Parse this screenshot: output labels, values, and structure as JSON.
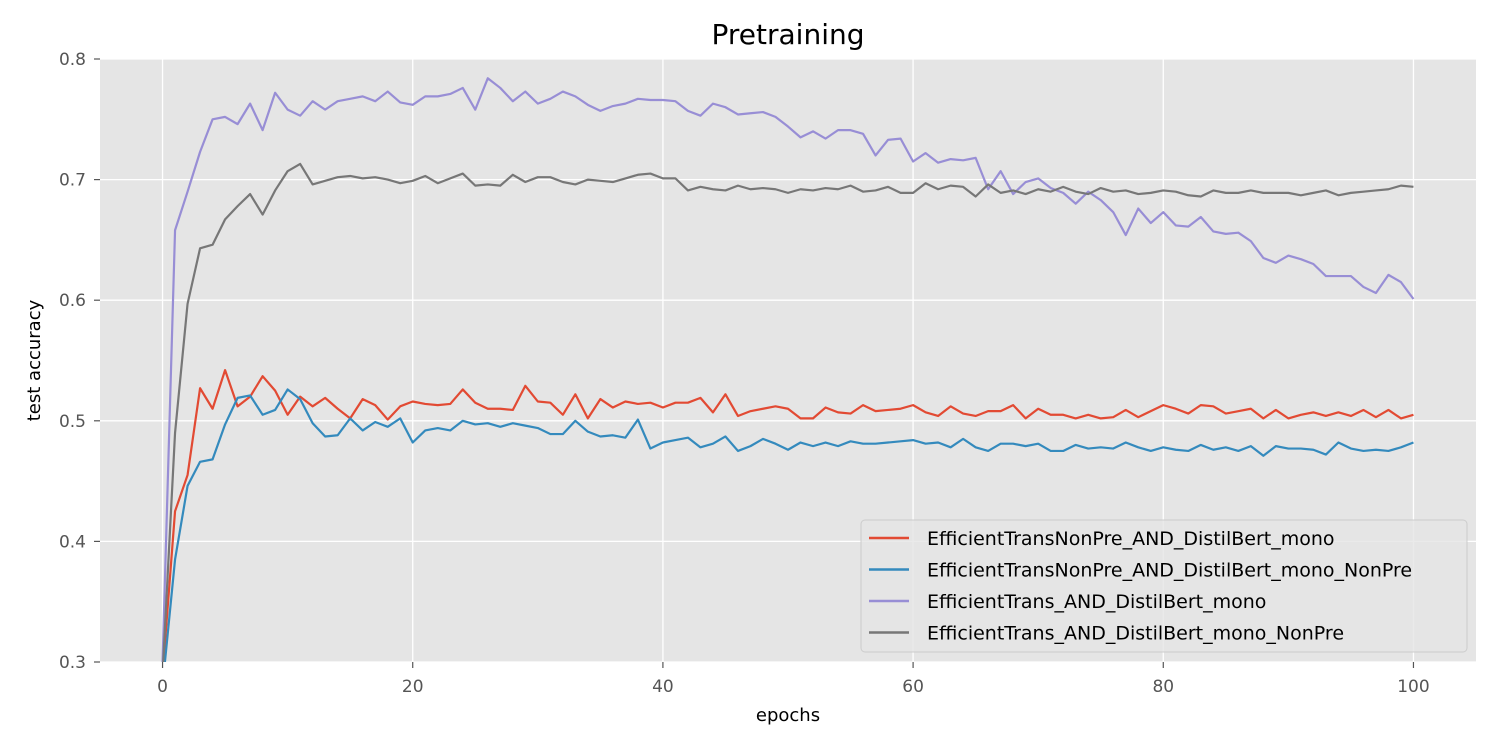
{
  "chart_data": {
    "type": "line",
    "title": "Pretraining",
    "xlabel": "epochs",
    "ylabel": "test accuracy",
    "xlim": [
      -5,
      105
    ],
    "ylim": [
      0.3,
      0.8
    ],
    "xticks": [
      0,
      20,
      40,
      60,
      80,
      100
    ],
    "yticks": [
      0.3,
      0.4,
      0.5,
      0.6,
      0.7,
      0.8
    ],
    "grid": true,
    "legend_position": "bottom-right",
    "x": [
      0,
      1,
      2,
      3,
      4,
      5,
      6,
      7,
      8,
      9,
      10,
      11,
      12,
      13,
      14,
      15,
      16,
      17,
      18,
      19,
      20,
      21,
      22,
      23,
      24,
      25,
      26,
      27,
      28,
      29,
      30,
      31,
      32,
      33,
      34,
      35,
      36,
      37,
      38,
      39,
      40,
      41,
      42,
      43,
      44,
      45,
      46,
      47,
      48,
      49,
      50,
      51,
      52,
      53,
      54,
      55,
      56,
      57,
      58,
      59,
      60,
      61,
      62,
      63,
      64,
      65,
      66,
      67,
      68,
      69,
      70,
      71,
      72,
      73,
      74,
      75,
      76,
      77,
      78,
      79,
      80,
      81,
      82,
      83,
      84,
      85,
      86,
      87,
      88,
      89,
      90,
      91,
      92,
      93,
      94,
      95,
      96,
      97,
      98,
      99,
      100
    ],
    "series": [
      {
        "name": "EfficientTransNonPre_AND_DistilBert_mono",
        "color": "#e24a33",
        "values": [
          0.29,
          0.425,
          0.455,
          0.527,
          0.51,
          0.542,
          0.512,
          0.52,
          0.537,
          0.525,
          0.505,
          0.52,
          0.512,
          0.519,
          0.51,
          0.502,
          0.518,
          0.513,
          0.501,
          0.512,
          0.516,
          0.514,
          0.513,
          0.514,
          0.526,
          0.515,
          0.51,
          0.51,
          0.509,
          0.529,
          0.516,
          0.515,
          0.505,
          0.522,
          0.502,
          0.518,
          0.511,
          0.516,
          0.514,
          0.515,
          0.511,
          0.515,
          0.515,
          0.519,
          0.507,
          0.522,
          0.504,
          0.508,
          0.51,
          0.512,
          0.51,
          0.502,
          0.502,
          0.511,
          0.507,
          0.506,
          0.513,
          0.508,
          0.509,
          0.51,
          0.513,
          0.507,
          0.504,
          0.512,
          0.506,
          0.504,
          0.508,
          0.508,
          0.513,
          0.502,
          0.51,
          0.505,
          0.505,
          0.502,
          0.505,
          0.502,
          0.503,
          0.509,
          0.503,
          0.508,
          0.513,
          0.51,
          0.506,
          0.513,
          0.512,
          0.506,
          0.508,
          0.51,
          0.502,
          0.509,
          0.502,
          0.505,
          0.507,
          0.504,
          0.507,
          0.504,
          0.509,
          0.503,
          0.509,
          0.502,
          0.505
        ]
      },
      {
        "name": "EfficientTransNonPre_AND_DistilBert_mono_NonPre",
        "color": "#348abd",
        "values": [
          0.28,
          0.385,
          0.446,
          0.466,
          0.468,
          0.497,
          0.519,
          0.521,
          0.505,
          0.509,
          0.526,
          0.518,
          0.498,
          0.487,
          0.488,
          0.502,
          0.492,
          0.499,
          0.495,
          0.502,
          0.482,
          0.492,
          0.494,
          0.492,
          0.5,
          0.497,
          0.498,
          0.495,
          0.498,
          0.496,
          0.494,
          0.489,
          0.489,
          0.5,
          0.491,
          0.487,
          0.488,
          0.486,
          0.501,
          0.477,
          0.482,
          0.484,
          0.486,
          0.478,
          0.481,
          0.487,
          0.475,
          0.479,
          0.485,
          0.481,
          0.476,
          0.482,
          0.479,
          0.482,
          0.479,
          0.483,
          0.481,
          0.481,
          0.482,
          0.483,
          0.484,
          0.481,
          0.482,
          0.478,
          0.485,
          0.478,
          0.475,
          0.481,
          0.481,
          0.479,
          0.481,
          0.475,
          0.475,
          0.48,
          0.477,
          0.478,
          0.477,
          0.482,
          0.478,
          0.475,
          0.478,
          0.476,
          0.475,
          0.48,
          0.476,
          0.478,
          0.475,
          0.479,
          0.471,
          0.479,
          0.477,
          0.477,
          0.476,
          0.472,
          0.482,
          0.477,
          0.475,
          0.476,
          0.475,
          0.478,
          0.482
        ]
      },
      {
        "name": "EfficientTrans_AND_DistilBert_mono",
        "color": "#988ed5",
        "values": [
          0.3,
          0.658,
          0.69,
          0.723,
          0.75,
          0.752,
          0.746,
          0.763,
          0.741,
          0.772,
          0.758,
          0.753,
          0.765,
          0.758,
          0.765,
          0.767,
          0.769,
          0.765,
          0.773,
          0.764,
          0.762,
          0.769,
          0.769,
          0.771,
          0.776,
          0.758,
          0.784,
          0.776,
          0.765,
          0.773,
          0.763,
          0.767,
          0.773,
          0.769,
          0.762,
          0.757,
          0.761,
          0.763,
          0.767,
          0.766,
          0.766,
          0.765,
          0.757,
          0.753,
          0.763,
          0.76,
          0.754,
          0.755,
          0.756,
          0.752,
          0.744,
          0.735,
          0.74,
          0.734,
          0.741,
          0.741,
          0.738,
          0.72,
          0.733,
          0.734,
          0.715,
          0.722,
          0.714,
          0.717,
          0.716,
          0.718,
          0.692,
          0.707,
          0.688,
          0.698,
          0.701,
          0.693,
          0.689,
          0.68,
          0.69,
          0.683,
          0.673,
          0.654,
          0.676,
          0.664,
          0.673,
          0.662,
          0.661,
          0.669,
          0.657,
          0.655,
          0.656,
          0.649,
          0.635,
          0.631,
          0.637,
          0.634,
          0.63,
          0.62,
          0.62,
          0.62,
          0.611,
          0.606,
          0.621,
          0.615,
          0.601
        ]
      },
      {
        "name": "EfficientTrans_AND_DistilBert_mono_NonPre",
        "color": "#777777",
        "values": [
          0.29,
          0.49,
          0.597,
          0.643,
          0.646,
          0.667,
          0.678,
          0.688,
          0.671,
          0.691,
          0.707,
          0.713,
          0.696,
          0.699,
          0.702,
          0.703,
          0.701,
          0.702,
          0.7,
          0.697,
          0.699,
          0.703,
          0.697,
          0.701,
          0.705,
          0.695,
          0.696,
          0.695,
          0.704,
          0.698,
          0.702,
          0.702,
          0.698,
          0.696,
          0.7,
          0.699,
          0.698,
          0.701,
          0.704,
          0.705,
          0.701,
          0.701,
          0.691,
          0.694,
          0.692,
          0.691,
          0.695,
          0.692,
          0.693,
          0.692,
          0.689,
          0.692,
          0.691,
          0.693,
          0.692,
          0.695,
          0.69,
          0.691,
          0.694,
          0.689,
          0.689,
          0.697,
          0.692,
          0.695,
          0.694,
          0.686,
          0.696,
          0.689,
          0.691,
          0.688,
          0.692,
          0.69,
          0.694,
          0.69,
          0.688,
          0.693,
          0.69,
          0.691,
          0.688,
          0.689,
          0.691,
          0.69,
          0.687,
          0.686,
          0.691,
          0.689,
          0.689,
          0.691,
          0.689,
          0.689,
          0.689,
          0.687,
          0.689,
          0.691,
          0.687,
          0.689,
          0.69,
          0.691,
          0.692,
          0.695,
          0.694
        ]
      }
    ]
  }
}
